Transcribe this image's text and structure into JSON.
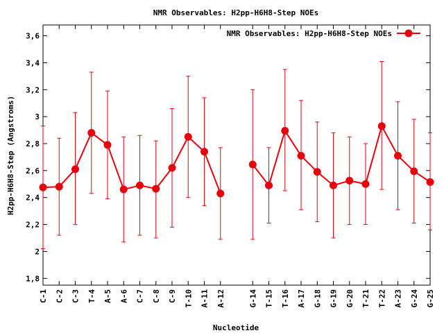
{
  "chart_data": {
    "type": "line",
    "title": "NMR Observables: H2pp-H6H8-Step NOEs",
    "xlabel": "Nucleotide",
    "ylabel": "H2pp-H6H8-Step (Angstroms)",
    "ylim": [
      1.75,
      3.68
    ],
    "yticks": [
      1.8,
      2,
      2.2,
      2.4,
      2.6,
      2.8,
      3,
      3.2,
      3.4,
      3.6
    ],
    "ytick_labels": [
      "1,8",
      "2",
      "2,2",
      "2,4",
      "2,6",
      "2,8",
      "3",
      "3,2",
      "3,4",
      "3,6"
    ],
    "grid": false,
    "legend_position": "top-right",
    "categories": [
      "C-1",
      "C-2",
      "C-3",
      "T-4",
      "A-5",
      "A-6",
      "C-7",
      "C-8",
      "C-9",
      "T-10",
      "A-11",
      "A-12",
      "",
      "G-14",
      "T-15",
      "T-16",
      "A-17",
      "G-18",
      "G-19",
      "G-20",
      "T-21",
      "T-22",
      "A-23",
      "G-24",
      "G-25"
    ],
    "color": "#e8000b",
    "series": [
      {
        "name": "NMR Observables: H2pp-H6H8-Step NOEs",
        "values": [
          2.475,
          2.48,
          2.61,
          2.88,
          2.79,
          2.46,
          2.49,
          2.465,
          2.62,
          2.85,
          2.74,
          2.43,
          null,
          2.645,
          2.49,
          2.895,
          2.71,
          2.59,
          2.49,
          2.525,
          2.5,
          2.93,
          2.71,
          2.595,
          2.515
        ],
        "err_low": [
          2.02,
          2.12,
          2.2,
          2.43,
          2.39,
          2.07,
          2.12,
          2.1,
          2.18,
          2.4,
          2.34,
          2.09,
          null,
          2.09,
          2.21,
          2.45,
          2.31,
          2.22,
          2.1,
          2.2,
          2.2,
          2.46,
          2.31,
          2.21,
          2.16
        ],
        "err_high": [
          2.93,
          2.84,
          3.03,
          3.33,
          3.19,
          2.85,
          2.86,
          2.82,
          3.06,
          3.3,
          3.14,
          2.77,
          null,
          3.2,
          2.77,
          3.35,
          3.12,
          2.96,
          2.88,
          2.85,
          2.8,
          3.41,
          3.11,
          2.98,
          2.88
        ]
      }
    ]
  }
}
